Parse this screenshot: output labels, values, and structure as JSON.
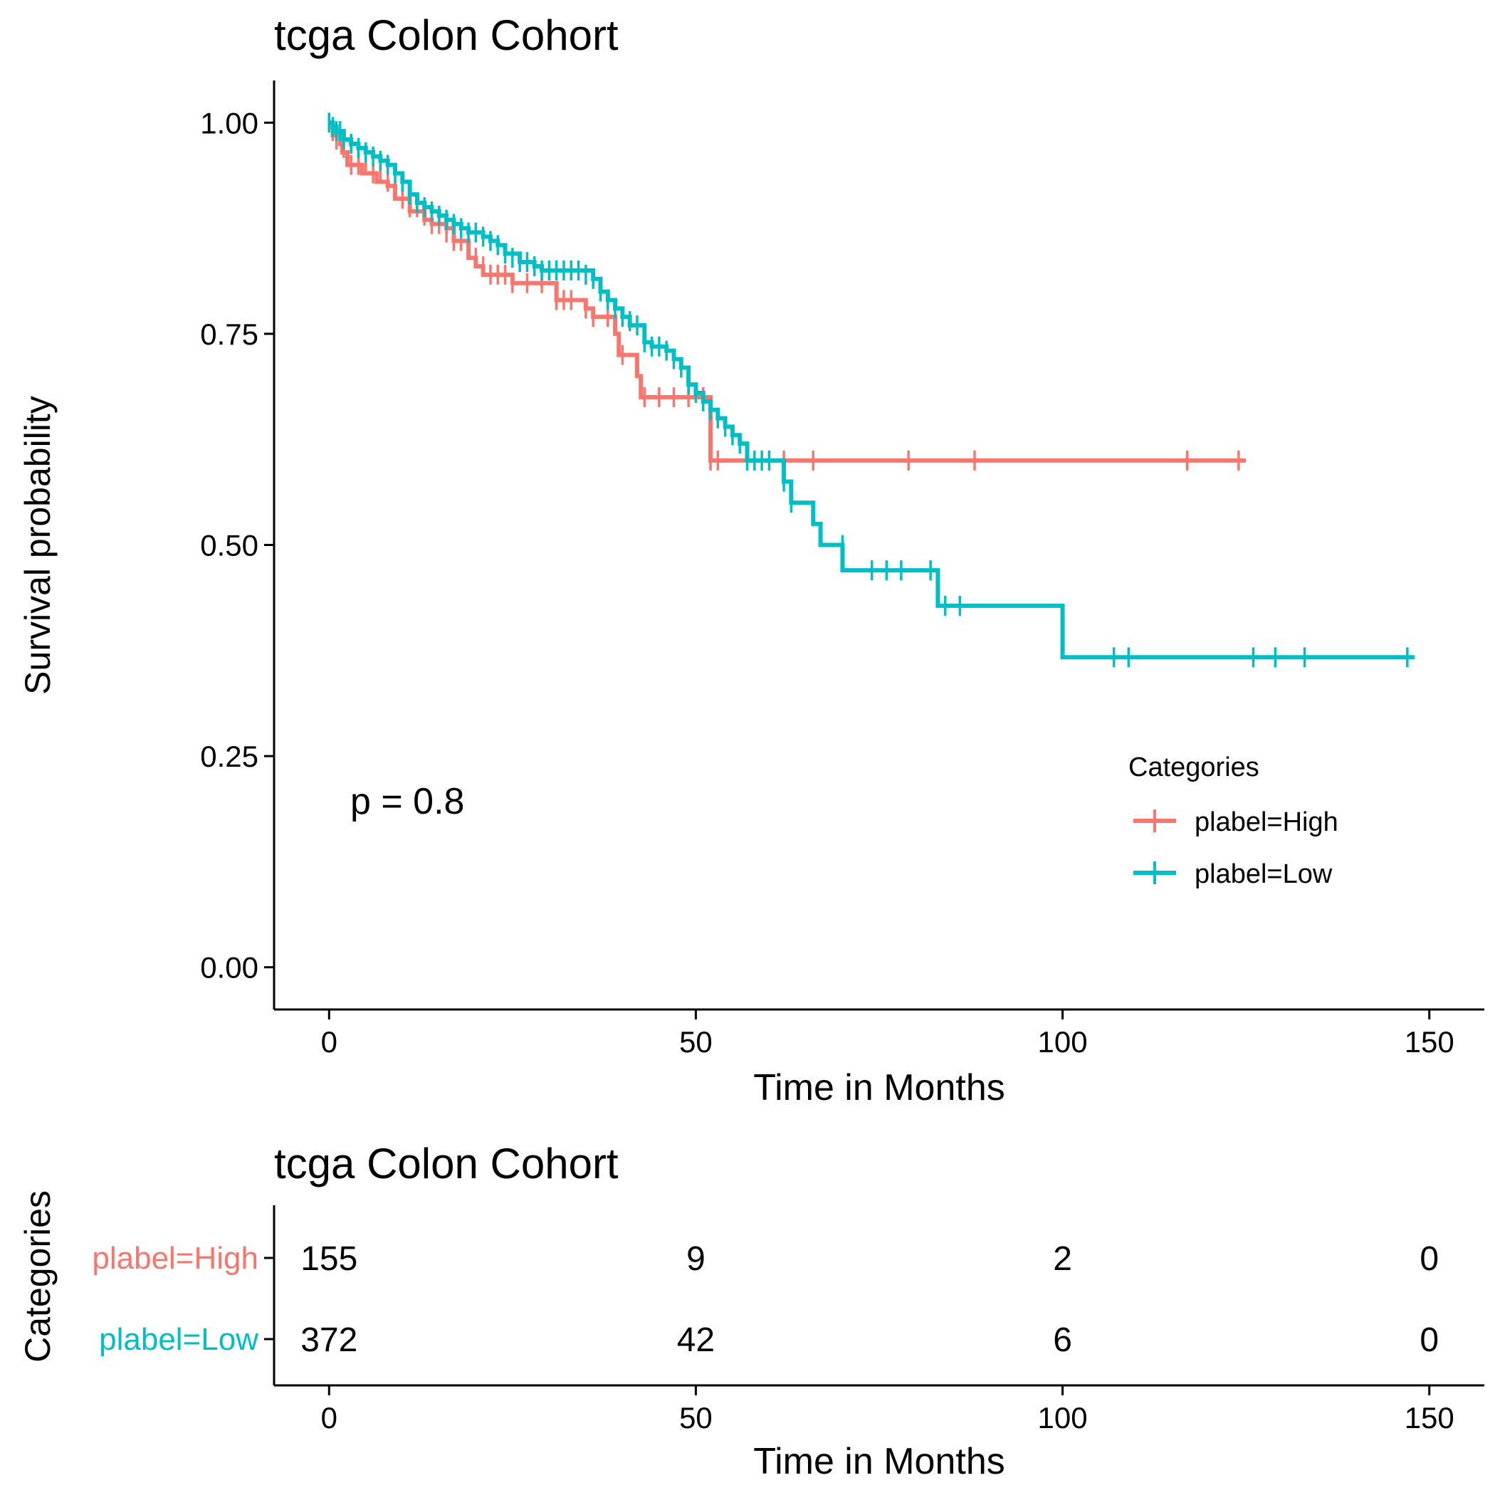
{
  "chart_data": [
    {
      "type": "line",
      "subtype": "kaplan-meier",
      "title": "tcga Colon Cohort",
      "xlabel": "Time in Months",
      "ylabel": "Survival probability",
      "xlim": [
        -7.5,
        157.5
      ],
      "ylim": [
        -0.05,
        1.05
      ],
      "xticks": [
        0,
        50,
        100,
        150
      ],
      "yticks": [
        0,
        0.25,
        0.5,
        0.75,
        1
      ],
      "xtick_labels": [
        "0",
        "50",
        "100",
        "150"
      ],
      "ytick_labels": [
        "0.00",
        "0.25",
        "0.50",
        "0.75",
        "1.00"
      ],
      "grid": false,
      "annotation": "p = 0.8",
      "legend": {
        "title": "Categories",
        "position": "right",
        "entries": [
          "plabel=High",
          "plabel=Low"
        ]
      },
      "series": [
        {
          "name": "plabel=High",
          "color": "#F8766D",
          "steps": [
            [
              0,
              1.0
            ],
            [
              0.5,
              0.985
            ],
            [
              1.5,
              0.975
            ],
            [
              1.8,
              0.965
            ],
            [
              2.5,
              0.95
            ],
            [
              4,
              0.95
            ],
            [
              4.5,
              0.94
            ],
            [
              6,
              0.94
            ],
            [
              6.5,
              0.93
            ],
            [
              8,
              0.925
            ],
            [
              9,
              0.91
            ],
            [
              11,
              0.895
            ],
            [
              13,
              0.885
            ],
            [
              14,
              0.88
            ],
            [
              16,
              0.875
            ],
            [
              17,
              0.86
            ],
            [
              19,
              0.84
            ],
            [
              20,
              0.83
            ],
            [
              21,
              0.82
            ],
            [
              25,
              0.81
            ],
            [
              30,
              0.81
            ],
            [
              31,
              0.79
            ],
            [
              35,
              0.78
            ],
            [
              36,
              0.77
            ],
            [
              39,
              0.75
            ],
            [
              39.5,
              0.725
            ],
            [
              42,
              0.7
            ],
            [
              42.5,
              0.675
            ],
            [
              52,
              0.6
            ],
            [
              125,
              0.6
            ]
          ],
          "censor_x": [
            0.5,
            1,
            2,
            3,
            4,
            5,
            6,
            7,
            8,
            9,
            10,
            11,
            12,
            13,
            14,
            15,
            16,
            17,
            18,
            19,
            20,
            21,
            22,
            23,
            24,
            25,
            27,
            29,
            31,
            32,
            33,
            35,
            36,
            38,
            40,
            43,
            45,
            47,
            49,
            51,
            52,
            53,
            62,
            66,
            79,
            88,
            117,
            124
          ],
          "censor_y": [
            0.99,
            0.98,
            0.97,
            0.95,
            0.95,
            0.95,
            0.94,
            0.94,
            0.93,
            0.92,
            0.91,
            0.9,
            0.9,
            0.89,
            0.88,
            0.88,
            0.87,
            0.86,
            0.86,
            0.85,
            0.84,
            0.83,
            0.82,
            0.82,
            0.82,
            0.81,
            0.81,
            0.81,
            0.79,
            0.79,
            0.79,
            0.78,
            0.77,
            0.77,
            0.725,
            0.675,
            0.675,
            0.675,
            0.675,
            0.675,
            0.6,
            0.6,
            0.6,
            0.6,
            0.6,
            0.6,
            0.6,
            0.6
          ]
        },
        {
          "name": "plabel=Low",
          "color": "#00BFC4",
          "steps": [
            [
              0,
              1.0
            ],
            [
              0.5,
              0.995
            ],
            [
              1,
              0.99
            ],
            [
              2,
              0.98
            ],
            [
              3,
              0.975
            ],
            [
              4,
              0.97
            ],
            [
              5,
              0.965
            ],
            [
              6,
              0.96
            ],
            [
              7,
              0.955
            ],
            [
              8,
              0.95
            ],
            [
              9,
              0.94
            ],
            [
              10,
              0.93
            ],
            [
              11,
              0.915
            ],
            [
              12,
              0.905
            ],
            [
              13,
              0.9
            ],
            [
              14,
              0.895
            ],
            [
              15,
              0.89
            ],
            [
              16,
              0.885
            ],
            [
              17,
              0.88
            ],
            [
              18,
              0.875
            ],
            [
              19,
              0.87
            ],
            [
              21,
              0.865
            ],
            [
              22,
              0.86
            ],
            [
              23,
              0.855
            ],
            [
              24,
              0.845
            ],
            [
              26,
              0.835
            ],
            [
              28,
              0.83
            ],
            [
              29,
              0.825
            ],
            [
              36,
              0.815
            ],
            [
              37,
              0.8
            ],
            [
              38,
              0.79
            ],
            [
              39,
              0.78
            ],
            [
              40,
              0.77
            ],
            [
              41,
              0.76
            ],
            [
              43,
              0.74
            ],
            [
              44,
              0.735
            ],
            [
              46,
              0.73
            ],
            [
              47,
              0.72
            ],
            [
              48,
              0.71
            ],
            [
              49,
              0.69
            ],
            [
              50,
              0.68
            ],
            [
              51,
              0.67
            ],
            [
              52,
              0.66
            ],
            [
              53,
              0.65
            ],
            [
              54,
              0.64
            ],
            [
              55,
              0.63
            ],
            [
              56,
              0.62
            ],
            [
              57,
              0.6
            ],
            [
              62,
              0.575
            ],
            [
              63,
              0.55
            ],
            [
              66,
              0.525
            ],
            [
              67,
              0.5
            ],
            [
              70,
              0.47
            ],
            [
              83,
              0.428
            ],
            [
              100,
              0.367
            ],
            [
              148,
              0.367
            ]
          ],
          "censor_x": [
            0,
            0.5,
            1,
            1.5,
            2,
            3,
            4,
            5,
            6,
            7,
            8,
            9,
            10,
            11,
            12,
            13,
            14,
            15,
            16,
            17,
            18,
            19,
            20,
            21,
            22,
            23,
            24,
            25,
            26,
            27,
            28,
            29,
            30,
            31,
            32,
            33,
            34,
            35,
            36,
            37,
            38,
            39,
            40,
            41,
            42,
            43,
            44,
            45,
            46,
            47,
            48,
            49,
            50,
            51,
            52,
            53,
            54,
            55,
            56,
            57,
            58,
            59,
            60,
            62,
            63,
            70,
            74,
            76,
            78,
            82,
            84,
            86,
            107,
            109,
            126,
            129,
            133,
            147
          ],
          "censor_y": [
            1.0,
            0.995,
            0.99,
            0.99,
            0.98,
            0.975,
            0.97,
            0.965,
            0.96,
            0.955,
            0.95,
            0.94,
            0.93,
            0.915,
            0.905,
            0.9,
            0.895,
            0.89,
            0.885,
            0.88,
            0.875,
            0.87,
            0.87,
            0.865,
            0.86,
            0.855,
            0.845,
            0.84,
            0.835,
            0.835,
            0.83,
            0.825,
            0.825,
            0.825,
            0.825,
            0.825,
            0.825,
            0.82,
            0.815,
            0.8,
            0.79,
            0.78,
            0.77,
            0.765,
            0.76,
            0.74,
            0.735,
            0.735,
            0.73,
            0.72,
            0.71,
            0.69,
            0.68,
            0.67,
            0.66,
            0.65,
            0.64,
            0.63,
            0.62,
            0.6,
            0.6,
            0.6,
            0.6,
            0.575,
            0.55,
            0.5,
            0.47,
            0.47,
            0.47,
            0.47,
            0.428,
            0.428,
            0.367,
            0.367,
            0.367,
            0.367,
            0.367,
            0.367
          ]
        }
      ]
    },
    {
      "type": "table",
      "title": "tcga Colon Cohort",
      "xlabel": "Time in Months",
      "ylabel": "Categories",
      "xlim": [
        -7.5,
        157.5
      ],
      "xticks": [
        0,
        50,
        100,
        150
      ],
      "xtick_labels": [
        "0",
        "50",
        "100",
        "150"
      ],
      "rows": [
        {
          "name": "plabel=High",
          "color": "#F8766D",
          "values": [
            "155",
            "9",
            "2",
            "0"
          ]
        },
        {
          "name": "plabel=Low",
          "color": "#00BFC4",
          "values": [
            "372",
            "42",
            "6",
            "0"
          ]
        }
      ]
    }
  ]
}
